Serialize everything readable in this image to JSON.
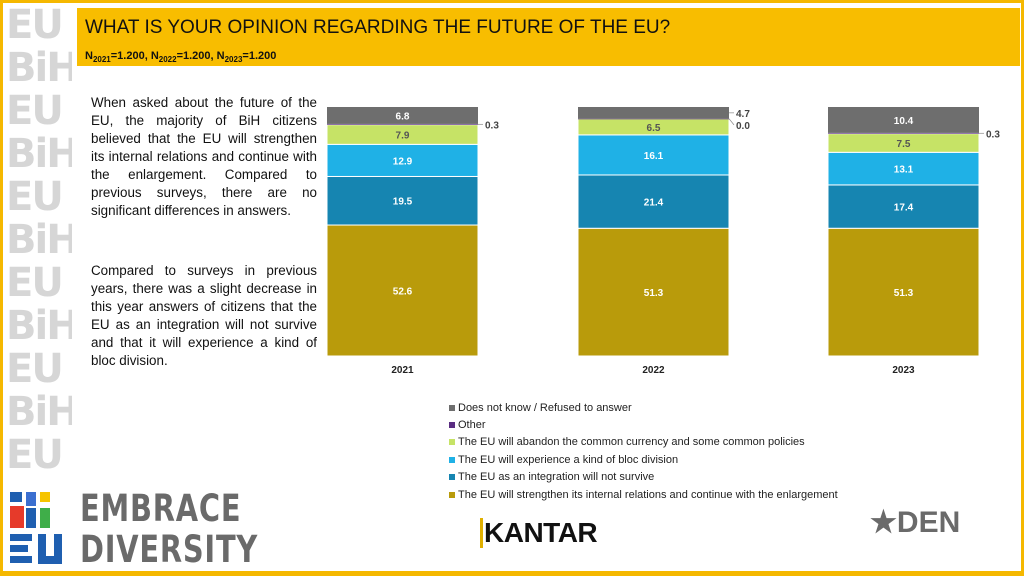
{
  "header": {
    "title": "WHAT IS YOUR OPINION REGARDING THE FUTURE OF THE EU?",
    "sample": [
      {
        "label": "N",
        "year": "2021",
        "value": "=1.200, "
      },
      {
        "label": "N",
        "year": "2022",
        "value": "=1.200, "
      },
      {
        "label": "N",
        "year": "2023",
        "value": "=1.200"
      }
    ]
  },
  "text": {
    "p1": "When asked about the future of the EU, the majority of BiH citizens believed that the EU will strengthen its internal relations and continue with the enlargement. Compared to previous surveys, there are no significant differences in answers.",
    "p2": "Compared to surveys in previous years, there was a slight decrease in this year answers of citizens that the EU as an integration will not survive and that it will experience a kind of bloc division."
  },
  "chart_data": {
    "type": "bar",
    "stacked": true,
    "categories": [
      "2021",
      "2022",
      "2023"
    ],
    "ylim": [
      0,
      100
    ],
    "series": [
      {
        "name": "The EU will strengthen its internal relations and continue with the enlargement",
        "color": "#b99b0b",
        "label_color": "#ffffff",
        "values": [
          52.6,
          51.3,
          51.3
        ]
      },
      {
        "name": "The EU as an integration will not survive",
        "color": "#1685b1",
        "label_color": "#ffffff",
        "values": [
          19.5,
          21.4,
          17.4
        ]
      },
      {
        "name": "The EU will experience a kind of bloc division",
        "color": "#1fb1e6",
        "label_color": "#ffffff",
        "values": [
          12.9,
          16.1,
          13.1
        ]
      },
      {
        "name": "The EU will abandon the common currency and some common policies",
        "color": "#c6e366",
        "label_color": "#555555",
        "values": [
          7.9,
          6.5,
          7.5
        ]
      },
      {
        "name": "Other",
        "color": "#5a2d82",
        "label_color": "#ffffff",
        "values": [
          0.3,
          0.0,
          0.3
        ]
      },
      {
        "name": "Does not know / Refused to answer",
        "color": "#6e6e6e",
        "label_color": "#ffffff",
        "values": [
          6.8,
          4.7,
          10.4
        ]
      }
    ],
    "legend_order": [
      5,
      4,
      3,
      2,
      1,
      0
    ]
  },
  "logos": {
    "left": "EMBRACE DIVERSITY",
    "left_mark": "EU BiH",
    "center": "KANTAR",
    "right": "DEN"
  }
}
